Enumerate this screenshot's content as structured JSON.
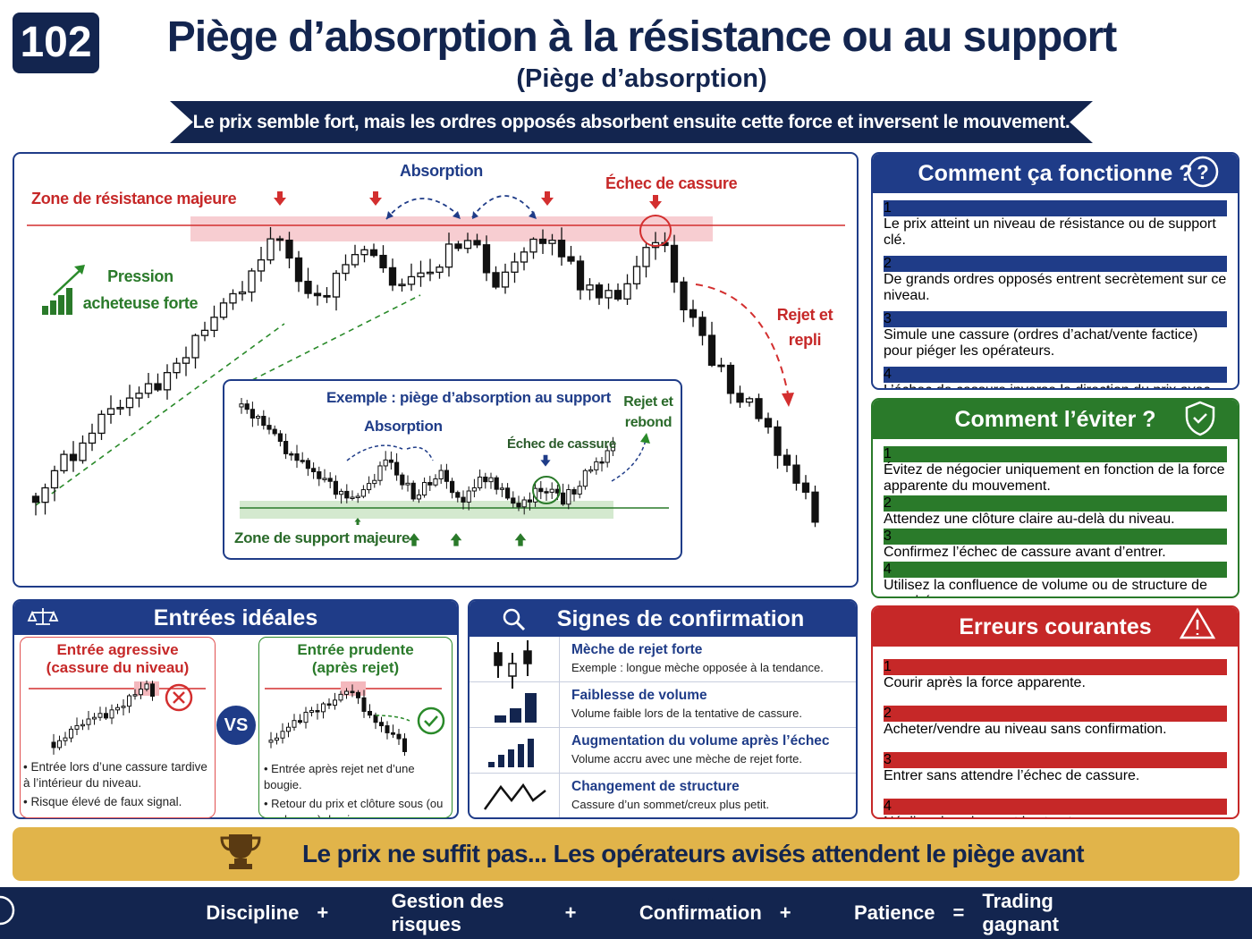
{
  "header": {
    "number": "102",
    "title": "Piège d’absorption à la résistance ou au support",
    "subtitle": "(Piège d’absorption)",
    "banner": "Le prix semble fort, mais les ordres opposés absorbent ensuite cette force et inversent le mouvement."
  },
  "main_chart": {
    "resistance_zone": "Zone de résistance majeure",
    "absorption": "Absorption",
    "breakout_failure": "Échec de cassure",
    "buying_pressure": "Pression acheteuse forte",
    "rejection": "Rejet et repli",
    "inset": {
      "title": "Exemple : piège d’absorption au support",
      "absorption": "Absorption",
      "breakout_failure": "Échec de cassure",
      "rebound": "Rejet et rebond",
      "support_zone": "Zone de support majeure"
    }
  },
  "how_it_works": {
    "title": "Comment ça fonctionne ?",
    "steps": [
      {
        "number": "1",
        "text": "Le prix atteint un niveau de résistance ou de support clé."
      },
      {
        "number": "2",
        "text": "De grands ordres opposés entrent secrètement sur ce niveau."
      },
      {
        "number": "3",
        "text": "Simule une cassure (ordres d’achat/vente factice) pour piéger les opérateurs."
      },
      {
        "number": "4",
        "text": "L’échec de cassure inverse la direction du prix avec force."
      }
    ]
  },
  "avoid": {
    "title": "Comment l’éviter ?",
    "steps": [
      {
        "number": "1",
        "text": "Évitez de négocier uniquement en fonction de la force apparente du mouvement."
      },
      {
        "number": "2",
        "text": "Attendez une clôture claire au-delà du niveau."
      },
      {
        "number": "3",
        "text": "Confirmez l’échec de cassure avant d’entrer."
      },
      {
        "number": "4",
        "text": "Utilisez la confluence de volume ou de structure de marché."
      }
    ]
  },
  "entries": {
    "title": "Entrées idéales",
    "aggressive": {
      "title": "Entrée agressive",
      "subtitle": "(cassure du niveau)",
      "bullets": [
        "Entrée lors d’une cassure tardive à l’intérieur du niveau.",
        "Risque élevé de faux signal."
      ]
    },
    "vs": "VS",
    "prudent": {
      "title": "Entrée prudente",
      "subtitle": "(après rejet)",
      "bullets": [
        "Entrée après rejet net d’une bougie.",
        "Retour du prix et clôture sous (ou au-dessus) du niveau."
      ]
    }
  },
  "signs": {
    "title": "Signes de confirmation",
    "items": [
      {
        "title": "Mèche de rejet forte",
        "text": "Exemple : longue mèche opposée à la tendance."
      },
      {
        "title": "Faiblesse de volume",
        "text": "Volume faible lors de la tentative de cassure."
      },
      {
        "title": "Augmentation du volume après l’échec",
        "text": "Volume accru avec une mèche de rejet forte."
      },
      {
        "title": "Changement de structure",
        "text": "Cassure d’un sommet/creux plus petit."
      }
    ]
  },
  "errors": {
    "title": "Erreurs courantes",
    "items": [
      {
        "number": "1",
        "text": "Courir après la force apparente."
      },
      {
        "number": "2",
        "text": "Acheter/vendre au niveau sans confirmation."
      },
      {
        "number": "3",
        "text": "Entrer sans attendre l’échec de cassure."
      },
      {
        "number": "4",
        "text": "Négliger le volume et la structure."
      }
    ]
  },
  "footer_banner": "Le prix ne suffit pas... Les opérateurs avisés attendent le piège avant d’agir.",
  "footer": {
    "items": [
      "Discipline",
      "Gestion des risques",
      "Confirmation",
      "Patience"
    ],
    "operators": [
      "+",
      "+",
      "+",
      "="
    ],
    "result": "Trading gagnant"
  }
}
